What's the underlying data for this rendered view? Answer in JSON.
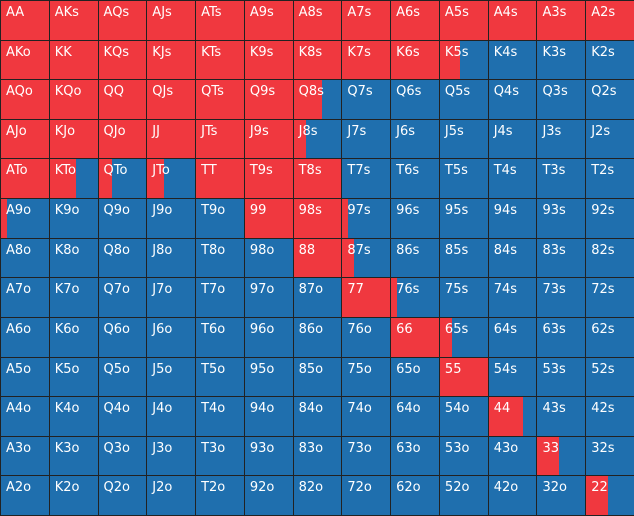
{
  "colors": {
    "raise": "#f0383f",
    "fold": "#1f6fae",
    "gridline": "#222222",
    "text": "#ffffff"
  },
  "hands": [
    [
      "AA",
      "AKs",
      "AQs",
      "AJs",
      "ATs",
      "A9s",
      "A8s",
      "A7s",
      "A6s",
      "A5s",
      "A4s",
      "A3s",
      "A2s"
    ],
    [
      "AKo",
      "KK",
      "KQs",
      "KJs",
      "KTs",
      "K9s",
      "K8s",
      "K7s",
      "K6s",
      "K5s",
      "K4s",
      "K3s",
      "K2s"
    ],
    [
      "AQo",
      "KQo",
      "QQ",
      "QJs",
      "QTs",
      "Q9s",
      "Q8s",
      "Q7s",
      "Q6s",
      "Q5s",
      "Q4s",
      "Q3s",
      "Q2s"
    ],
    [
      "AJo",
      "KJo",
      "QJo",
      "JJ",
      "JTs",
      "J9s",
      "J8s",
      "J7s",
      "J6s",
      "J5s",
      "J4s",
      "J3s",
      "J2s"
    ],
    [
      "ATo",
      "KTo",
      "QTo",
      "JTo",
      "TT",
      "T9s",
      "T8s",
      "T7s",
      "T6s",
      "T5s",
      "T4s",
      "T3s",
      "T2s"
    ],
    [
      "A9o",
      "K9o",
      "Q9o",
      "J9o",
      "T9o",
      "99",
      "98s",
      "97s",
      "96s",
      "95s",
      "94s",
      "93s",
      "92s"
    ],
    [
      "A8o",
      "K8o",
      "Q8o",
      "J8o",
      "T8o",
      "98o",
      "88",
      "87s",
      "86s",
      "85s",
      "84s",
      "83s",
      "82s"
    ],
    [
      "A7o",
      "K7o",
      "Q7o",
      "J7o",
      "T7o",
      "97o",
      "87o",
      "77",
      "76s",
      "75s",
      "74s",
      "73s",
      "72s"
    ],
    [
      "A6o",
      "K6o",
      "Q6o",
      "J6o",
      "T6o",
      "96o",
      "86o",
      "76o",
      "66",
      "65s",
      "64s",
      "63s",
      "62s"
    ],
    [
      "A5o",
      "K5o",
      "Q5o",
      "J5o",
      "T5o",
      "95o",
      "85o",
      "75o",
      "65o",
      "55",
      "54s",
      "53s",
      "52s"
    ],
    [
      "A4o",
      "K4o",
      "Q4o",
      "J4o",
      "T4o",
      "94o",
      "84o",
      "74o",
      "64o",
      "54o",
      "44",
      "43s",
      "42s"
    ],
    [
      "A3o",
      "K3o",
      "Q3o",
      "J3o",
      "T3o",
      "93o",
      "83o",
      "73o",
      "63o",
      "53o",
      "43o",
      "33",
      "32s"
    ],
    [
      "A2o",
      "K2o",
      "Q2o",
      "J2o",
      "T2o",
      "92o",
      "82o",
      "72o",
      "62o",
      "52o",
      "42o",
      "32o",
      "22"
    ]
  ],
  "raise_fraction": [
    [
      1,
      1,
      1,
      1,
      1,
      1,
      1,
      1,
      1,
      1,
      1,
      1,
      1
    ],
    [
      1,
      1,
      1,
      1,
      1,
      1,
      1,
      1,
      1,
      0.42,
      0,
      0,
      0
    ],
    [
      1,
      1,
      1,
      1,
      1,
      1,
      0.6,
      0,
      0,
      0,
      0,
      0,
      0
    ],
    [
      1,
      1,
      1,
      1,
      1,
      1,
      0.25,
      0,
      0,
      0,
      0,
      0,
      0
    ],
    [
      1,
      0.55,
      0.28,
      0.35,
      1,
      1,
      1,
      0,
      0,
      0,
      0,
      0,
      0
    ],
    [
      0.12,
      0,
      0,
      0,
      0,
      1,
      1,
      0.12,
      0,
      0,
      0,
      0,
      0
    ],
    [
      0,
      0,
      0,
      0,
      0,
      0,
      1,
      0.25,
      0,
      0,
      0,
      0,
      0
    ],
    [
      0,
      0,
      0,
      0,
      0,
      0,
      0,
      1,
      0.12,
      0,
      0,
      0,
      0
    ],
    [
      0,
      0,
      0,
      0,
      0,
      0,
      0,
      0,
      1,
      0.25,
      0,
      0,
      0
    ],
    [
      0,
      0,
      0,
      0,
      0,
      0,
      0,
      0,
      0,
      1,
      0,
      0,
      0
    ],
    [
      0,
      0,
      0,
      0,
      0,
      0,
      0,
      0,
      0,
      0,
      0.72,
      0,
      0
    ],
    [
      0,
      0,
      0,
      0,
      0,
      0,
      0,
      0,
      0,
      0,
      0,
      0.45,
      0
    ],
    [
      0,
      0,
      0,
      0,
      0,
      0,
      0,
      0,
      0,
      0,
      0,
      0,
      0.45
    ]
  ]
}
